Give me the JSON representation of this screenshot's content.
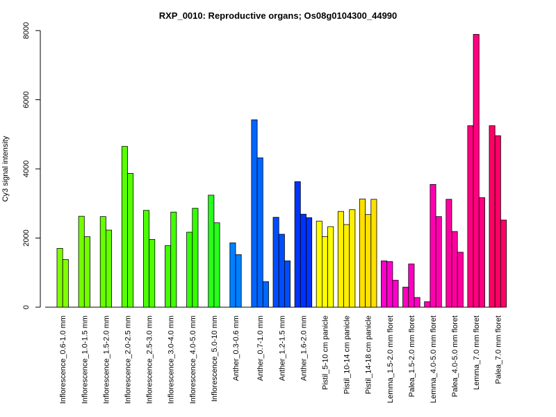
{
  "chart_data": {
    "type": "bar",
    "title": "RXP_0010: Reproductive organs; Os08g0104300_44990",
    "xlabel": "",
    "ylabel": "Cy3 signal intensity",
    "ylim": [
      0,
      8000
    ],
    "yticks": [
      0,
      2000,
      4000,
      6000,
      8000
    ],
    "grid": false,
    "groups": [
      {
        "label": "Inflorescence_0.6-1.0 mm",
        "color": "#80FF00",
        "values": [
          1700,
          1380
        ]
      },
      {
        "label": "Inflorescence_1.0-1.5 mm",
        "color": "#73FF00",
        "values": [
          2630,
          2040
        ]
      },
      {
        "label": "Inflorescence_1.5-2.0 mm",
        "color": "#66FF00",
        "values": [
          2620,
          2230
        ]
      },
      {
        "label": "Inflorescence_2.0-2.5 mm",
        "color": "#59FF00",
        "values": [
          4650,
          3870
        ]
      },
      {
        "label": "Inflorescence_2.5-3.0 mm",
        "color": "#4DFF00",
        "values": [
          2800,
          1960
        ]
      },
      {
        "label": "Inflorescence_3.0-4.0 mm",
        "color": "#40FF00",
        "values": [
          1780,
          2750
        ]
      },
      {
        "label": "Inflorescence_4.0-5.0 mm",
        "color": "#33FF00",
        "values": [
          2170,
          2860
        ]
      },
      {
        "label": "Inflorescence_5.0-10 mm",
        "color": "#26FF1A",
        "values": [
          3240,
          2440
        ]
      },
      {
        "label": "Anther_0.3-0.6 mm",
        "color": "#0080FF",
        "values": [
          1860,
          1520
        ]
      },
      {
        "label": "Anther_0.7-1.0 mm",
        "color": "#0066FF",
        "values": [
          5420,
          4320,
          740
        ]
      },
      {
        "label": "Anther_1.2-1.5 mm",
        "color": "#004DFF",
        "values": [
          2600,
          2110,
          1340
        ]
      },
      {
        "label": "Anther_1.6-2.0 mm",
        "color": "#0033FF",
        "values": [
          3630,
          2690,
          2590
        ]
      },
      {
        "label": "Pistil_5-10 cm panicle",
        "color": "#FFFF00",
        "values": [
          2490,
          2040,
          2330
        ]
      },
      {
        "label": "Pistil_10-14 cm panicle",
        "color": "#FFF000",
        "values": [
          2770,
          2390,
          2820
        ]
      },
      {
        "label": "Pistil_14-18 cm panicle",
        "color": "#FFE000",
        "values": [
          3130,
          2680,
          3120
        ]
      },
      {
        "label": "Lemma_1.5-2.0 mm floret",
        "color": "#FF00CC",
        "values": [
          1340,
          1320,
          780
        ]
      },
      {
        "label": "Palea_1.5-2.0 mm floret",
        "color": "#FF00C0",
        "values": [
          580,
          1250,
          280
        ]
      },
      {
        "label": "Lemma_4.0-5.0 mm floret",
        "color": "#FF00B0",
        "values": [
          160,
          3550,
          2620
        ]
      },
      {
        "label": "Palea_4.0-5.0 mm floret",
        "color": "#FF00A0",
        "values": [
          3120,
          2190,
          1590
        ]
      },
      {
        "label": "Lemma_7.0 mm floret",
        "color": "#FF0080",
        "values": [
          5250,
          7890,
          3170
        ]
      },
      {
        "label": "Palea_7.0 mm floret",
        "color": "#FF0066",
        "values": [
          5250,
          4960,
          2520
        ]
      }
    ]
  }
}
